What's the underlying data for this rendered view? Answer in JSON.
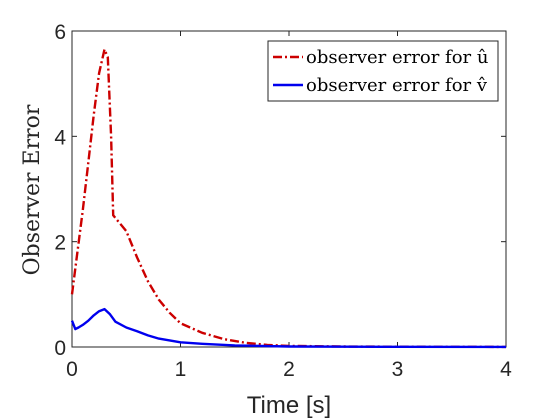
{
  "chart_data": {
    "type": "line",
    "xlabel": "Time [s]",
    "ylabel": "Observer Error",
    "xlim": [
      0,
      4
    ],
    "ylim": [
      0,
      6
    ],
    "x_ticks": [
      0,
      1,
      2,
      3,
      4
    ],
    "y_ticks": [
      0,
      2,
      4,
      6
    ],
    "x_tick_labels": [
      "0",
      "1",
      "2",
      "3",
      "4"
    ],
    "y_tick_labels": [
      "0",
      "2",
      "4",
      "6"
    ],
    "grid": false,
    "legend_position": "top-right",
    "series": [
      {
        "name": "observer error for û",
        "color": "#cc0000",
        "line_style": "dash-dot",
        "x": [
          0,
          0.05,
          0.1,
          0.15,
          0.2,
          0.25,
          0.3,
          0.33,
          0.36,
          0.38,
          0.4,
          0.5,
          0.6,
          0.7,
          0.8,
          0.9,
          1.0,
          1.2,
          1.4,
          1.6,
          1.8,
          2.0,
          2.5,
          3.0,
          3.5,
          4.0
        ],
        "y": [
          1.0,
          1.8,
          2.6,
          3.5,
          4.4,
          5.2,
          5.65,
          5.5,
          4.0,
          2.5,
          2.45,
          2.2,
          1.7,
          1.25,
          0.9,
          0.65,
          0.45,
          0.27,
          0.15,
          0.08,
          0.04,
          0.02,
          0.01,
          0.005,
          0.003,
          0.002
        ]
      },
      {
        "name": "observer error for v̂",
        "color": "#0000ee",
        "line_style": "solid",
        "x": [
          0,
          0.03,
          0.06,
          0.1,
          0.15,
          0.2,
          0.25,
          0.3,
          0.35,
          0.4,
          0.5,
          0.6,
          0.7,
          0.8,
          1.0,
          1.2,
          1.5,
          2.0,
          2.5,
          3.0,
          4.0
        ],
        "y": [
          0.5,
          0.34,
          0.37,
          0.42,
          0.5,
          0.6,
          0.68,
          0.72,
          0.62,
          0.48,
          0.37,
          0.3,
          0.22,
          0.16,
          0.09,
          0.06,
          0.03,
          0.01,
          0.005,
          0.003,
          0.002
        ]
      }
    ]
  }
}
